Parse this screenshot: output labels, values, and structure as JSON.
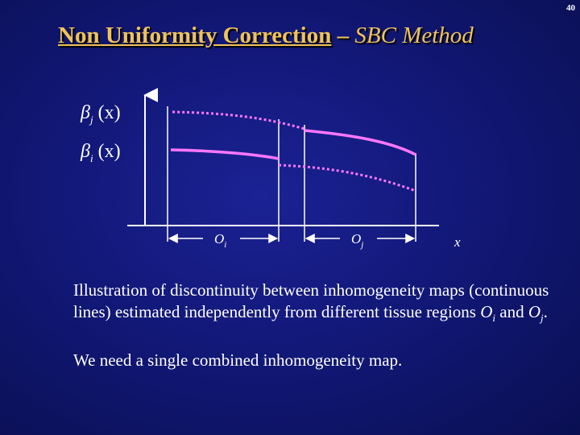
{
  "slide": {
    "number": "40",
    "title_bold": "Non Uniformity Correction",
    "title_dash": " – ",
    "title_italic": "SBC Method"
  },
  "diagram": {
    "y_label_upper": {
      "symbol": "β",
      "subscript": "j",
      "arg": "(x)"
    },
    "y_label_lower": {
      "symbol": "β",
      "subscript": "i",
      "arg": "(x)"
    },
    "x_axis_label": "x",
    "region_left": {
      "name": "O",
      "subscript": "i"
    },
    "region_right": {
      "name": "O",
      "subscript": "j"
    },
    "curve_color": "#ff77ff",
    "line_color": "#ffffff"
  },
  "caption": {
    "para1_text": "Illustration of  discontinuity between inhomogeneity maps (continuous lines) estimated independently from different tissue regions ",
    "para1_ri": "O",
    "para1_ri_sub": "i",
    "para1_and": " and ",
    "para1_rj": "O",
    "para1_rj_sub": "j",
    "para1_end": ".",
    "para2": "We need a single combined inhomogeneity map."
  }
}
